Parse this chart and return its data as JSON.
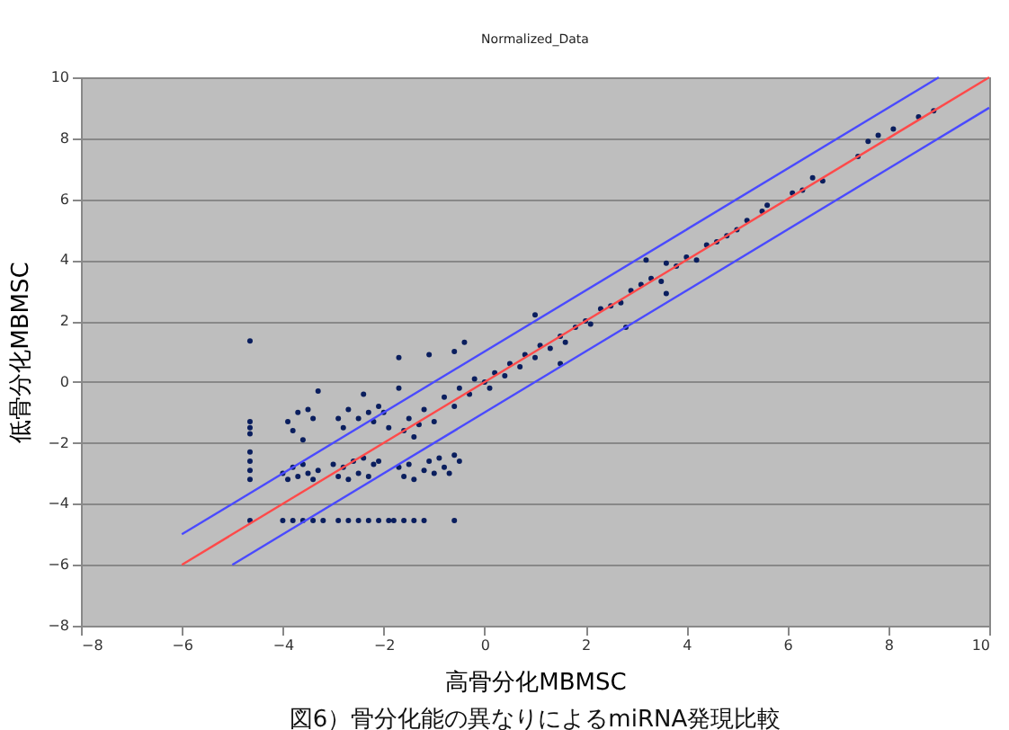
{
  "chart_data": {
    "type": "scatter",
    "title": "Normalized_Data",
    "xlabel": "高骨分化MBMSC",
    "ylabel": "低骨分化MBMSC",
    "annotations": [
      "図6）骨分化能の異なりによるmiRNA発現比較"
    ],
    "xlim": [
      -8,
      10
    ],
    "ylim": [
      -8,
      10
    ],
    "xticks": [
      -8,
      -6,
      -4,
      -2,
      0,
      2,
      4,
      6,
      8,
      10
    ],
    "yticks": [
      -8,
      -6,
      -4,
      -2,
      0,
      2,
      4,
      6,
      8,
      10
    ],
    "grid": "y",
    "series": [
      {
        "color": "#0a1e5e",
        "marker": "circle",
        "x": [
          -1.5,
          -1.2,
          -1.0,
          -0.8,
          -0.6,
          -0.5,
          -0.3,
          -0.2,
          0,
          0.1,
          0.2,
          0.4,
          0.5,
          0.7,
          0.8,
          1.0,
          1.1,
          1.3,
          1.5,
          1.6,
          1.8,
          2.0,
          2.1,
          2.3,
          2.5,
          2.7,
          2.9,
          3.1,
          3.3,
          3.5,
          3.6,
          3.8,
          4.0,
          4.2,
          4.4,
          4.6,
          4.8,
          5.0,
          5.2,
          5.5,
          5.6,
          6.1,
          6.3,
          6.5,
          6.7,
          7.4,
          7.6,
          7.8,
          8.1,
          8.6,
          8.9,
          1.0,
          2.8,
          1.5,
          -1.1,
          -1.7,
          -0.6,
          -0.4,
          3.2,
          3.6,
          -3.9,
          -3.8,
          -3.7,
          -3.6,
          -3.5,
          -3.4,
          -3.3,
          -2.9,
          -2.8,
          -2.7,
          -2.5,
          -2.4,
          -2.3,
          -2.2,
          -2.1,
          -2.0,
          -1.9,
          -1.7,
          -1.6,
          -1.4,
          -1.3,
          -4.0,
          -3.9,
          -3.8,
          -3.7,
          -3.6,
          -3.5,
          -3.4,
          -3.3,
          -3.0,
          -2.9,
          -2.8,
          -2.7,
          -2.6,
          -2.5,
          -2.4,
          -2.3,
          -2.2,
          -2.1,
          -1.7,
          -1.6,
          -1.5,
          -1.4,
          -1.2,
          -1.1,
          -1.0,
          -0.9,
          -0.8,
          -0.7,
          -0.6,
          -0.5,
          -4.65,
          -4.65,
          -4.65,
          -4.65,
          -4.65,
          -4.65,
          -4.65,
          -4.65,
          -4.65,
          -4.0,
          -3.8,
          -3.6,
          -3.4,
          -3.2,
          -2.9,
          -2.7,
          -2.5,
          -2.3,
          -2.1,
          -1.9,
          -1.8,
          -1.6,
          -1.4,
          -1.2,
          -0.6
        ],
        "values": [
          -1.2,
          -0.9,
          -1.3,
          -0.5,
          -0.8,
          -0.2,
          -0.4,
          0.1,
          0,
          -0.2,
          0.3,
          0.2,
          0.6,
          0.5,
          0.9,
          0.8,
          1.2,
          1.1,
          1.5,
          1.3,
          1.8,
          2.0,
          1.9,
          2.4,
          2.5,
          2.6,
          3.0,
          3.2,
          3.4,
          3.3,
          3.9,
          3.8,
          4.1,
          4.0,
          4.5,
          4.6,
          4.8,
          5.0,
          5.3,
          5.6,
          5.8,
          6.2,
          6.3,
          6.7,
          6.6,
          7.4,
          7.9,
          8.1,
          8.3,
          8.7,
          8.9,
          2.2,
          1.8,
          0.6,
          0.9,
          0.8,
          1.0,
          1.3,
          4.0,
          2.9,
          -1.3,
          -1.6,
          -1.0,
          -1.9,
          -0.9,
          -1.2,
          -0.3,
          -1.2,
          -1.5,
          -0.9,
          -1.2,
          -0.4,
          -1.0,
          -1.3,
          -0.8,
          -1.0,
          -1.5,
          -0.2,
          -1.6,
          -1.8,
          -1.4,
          -3.0,
          -3.2,
          -2.8,
          -3.1,
          -2.7,
          -3.0,
          -3.2,
          -2.9,
          -2.7,
          -3.1,
          -2.8,
          -3.2,
          -2.6,
          -3.0,
          -2.5,
          -3.1,
          -2.7,
          -2.6,
          -2.8,
          -3.1,
          -2.7,
          -3.2,
          -2.9,
          -2.6,
          -3.0,
          -2.5,
          -2.8,
          -3.0,
          -2.4,
          -2.6,
          1.35,
          -1.3,
          -1.5,
          -1.7,
          -2.3,
          -2.6,
          -2.9,
          -3.2,
          -4.55,
          -4.55,
          -4.55,
          -4.55,
          -4.55,
          -4.55,
          -4.55,
          -4.55,
          -4.55,
          -4.55,
          -4.55,
          -4.55,
          -4.55,
          -4.55,
          -4.55,
          -4.55,
          -4.55
        ]
      },
      {
        "type": "line",
        "color": "#ff4a4a",
        "line_style": "solid",
        "marker": "none",
        "x": [
          -6,
          10
        ],
        "values": [
          -6,
          10
        ]
      },
      {
        "type": "line",
        "color": "#4a4aff",
        "line_style": "solid",
        "marker": "none",
        "x": [
          -6,
          9
        ],
        "values": [
          -5,
          10
        ]
      },
      {
        "type": "line",
        "color": "#4a4aff",
        "line_style": "solid",
        "marker": "none",
        "x": [
          -5,
          10
        ],
        "values": [
          -6,
          9
        ]
      }
    ]
  }
}
